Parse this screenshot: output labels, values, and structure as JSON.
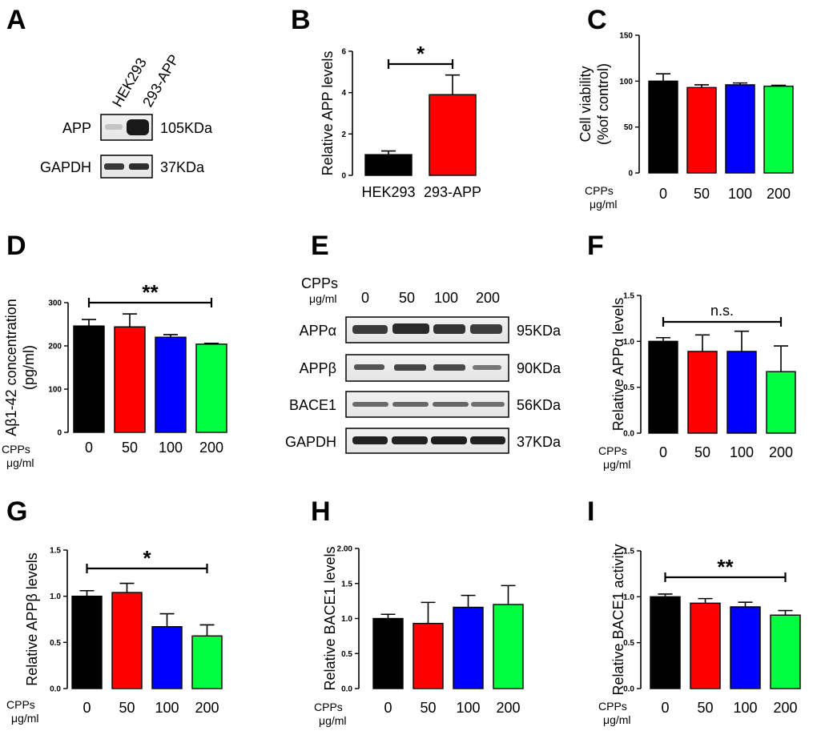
{
  "panel_letters": [
    "A",
    "B",
    "C",
    "D",
    "E",
    "F",
    "G",
    "H",
    "I"
  ],
  "treatment_label": {
    "line1": "CPPs",
    "line2": "μg/ml"
  },
  "colors": {
    "black": "#000000",
    "red": "#ff0000",
    "blue": "#0000ff",
    "green": "#00ff40"
  },
  "blot_A": {
    "lanes": [
      "HEK293",
      "293-APP"
    ],
    "rows": [
      {
        "name": "APP",
        "mw": "105KDa"
      },
      {
        "name": "GAPDH",
        "mw": "37KDa"
      }
    ]
  },
  "blot_E": {
    "header_line1": "CPPs",
    "header_line2": "μg/ml",
    "lanes": [
      "0",
      "50",
      "100",
      "200"
    ],
    "rows": [
      {
        "name": "APPα",
        "mw": "95KDa"
      },
      {
        "name": "APPβ",
        "mw": "90KDa"
      },
      {
        "name": "BACE1",
        "mw": "56KDa"
      },
      {
        "name": "GAPDH",
        "mw": "37KDa"
      }
    ]
  },
  "chart_data": [
    {
      "panel": "B",
      "type": "bar",
      "title": "",
      "categories": [
        "HEK293",
        "293-APP"
      ],
      "values": [
        1.0,
        3.9
      ],
      "errors": [
        0.18,
        0.95
      ],
      "colors": [
        "#000000",
        "#ff0000"
      ],
      "ylabel": "Relative APP levels",
      "ylim": [
        0,
        6
      ],
      "yticks": [
        0,
        2,
        4,
        6
      ],
      "ytick_labels": [
        "0",
        "2",
        "4",
        "6"
      ],
      "significance": {
        "label": "*",
        "from": 0,
        "to": 1
      }
    },
    {
      "panel": "C",
      "type": "bar",
      "title": "",
      "categories": [
        "0",
        "50",
        "100",
        "200"
      ],
      "values": [
        100,
        93,
        96,
        94.5
      ],
      "errors": [
        8,
        3,
        2,
        1
      ],
      "colors": [
        "#000000",
        "#ff0000",
        "#0000ff",
        "#00ff40"
      ],
      "ylabel": "Cell viability (%of control)",
      "ylabel_lines": [
        "Cell viability",
        "(%of control)"
      ],
      "ylim": [
        0,
        150
      ],
      "yticks": [
        0,
        50,
        100,
        150
      ],
      "ytick_labels": [
        "0",
        "50",
        "100",
        "150"
      ]
    },
    {
      "panel": "D",
      "type": "bar",
      "title": "",
      "categories": [
        "0",
        "50",
        "100",
        "200"
      ],
      "values": [
        246,
        244,
        220,
        204
      ],
      "errors": [
        15,
        30,
        6,
        2
      ],
      "colors": [
        "#000000",
        "#ff0000",
        "#0000ff",
        "#00ff40"
      ],
      "ylabel": "Aβ1-42 concentration (pg/ml)",
      "ylabel_lines": [
        "Aβ1-42 concentration",
        "(pg/ml)"
      ],
      "ylim": [
        0,
        300
      ],
      "yticks": [
        0,
        100,
        200,
        300
      ],
      "ytick_labels": [
        "0",
        "100",
        "200",
        "300"
      ],
      "significance": {
        "label": "**",
        "from": 0,
        "to": 3
      }
    },
    {
      "panel": "F",
      "type": "bar",
      "title": "",
      "categories": [
        "0",
        "50",
        "100",
        "200"
      ],
      "values": [
        1.0,
        0.89,
        0.89,
        0.67
      ],
      "errors": [
        0.04,
        0.18,
        0.22,
        0.28
      ],
      "colors": [
        "#000000",
        "#ff0000",
        "#0000ff",
        "#00ff40"
      ],
      "ylabel": "Relative APPα levels",
      "ylim": [
        0,
        1.5
      ],
      "yticks": [
        0,
        0.5,
        1.0,
        1.5
      ],
      "ytick_labels": [
        "0.0",
        "0.5",
        "1.0",
        "1.5"
      ],
      "significance": {
        "label": "n.s.",
        "from": 0,
        "to": 3
      }
    },
    {
      "panel": "G",
      "type": "bar",
      "title": "",
      "categories": [
        "0",
        "50",
        "100",
        "200"
      ],
      "values": [
        1.0,
        1.04,
        0.67,
        0.57
      ],
      "errors": [
        0.06,
        0.1,
        0.14,
        0.12
      ],
      "colors": [
        "#000000",
        "#ff0000",
        "#0000ff",
        "#00ff40"
      ],
      "ylabel": "Relative APPβ levels",
      "ylim": [
        0,
        1.5
      ],
      "yticks": [
        0,
        0.5,
        1.0,
        1.5
      ],
      "ytick_labels": [
        "0.0",
        "0.5",
        "1.0",
        "1.5"
      ],
      "significance": {
        "label": "*",
        "from": 0,
        "to": 3
      }
    },
    {
      "panel": "H",
      "type": "bar",
      "title": "",
      "categories": [
        "0",
        "50",
        "100",
        "200"
      ],
      "values": [
        1.0,
        0.93,
        1.16,
        1.2
      ],
      "errors": [
        0.06,
        0.3,
        0.17,
        0.27
      ],
      "colors": [
        "#000000",
        "#ff0000",
        "#0000ff",
        "#00ff40"
      ],
      "ylabel": "Relative BACE1 levels",
      "ylim": [
        0,
        2.0
      ],
      "yticks": [
        0,
        0.5,
        1.0,
        1.5,
        2.0
      ],
      "ytick_labels": [
        "0.0",
        "0.5",
        "1.0",
        "1.5",
        "2.00"
      ]
    },
    {
      "panel": "I",
      "type": "bar",
      "title": "",
      "categories": [
        "0",
        "50",
        "100",
        "200"
      ],
      "values": [
        1.0,
        0.93,
        0.89,
        0.8
      ],
      "errors": [
        0.03,
        0.05,
        0.05,
        0.05
      ],
      "colors": [
        "#000000",
        "#ff0000",
        "#0000ff",
        "#00ff40"
      ],
      "ylabel": "Relative BACE1 activity",
      "ylim": [
        0,
        1.5
      ],
      "yticks": [
        0,
        0.5,
        1.0,
        1.5
      ],
      "ytick_labels": [
        "0.0",
        "0.5",
        "1.0",
        "1.5"
      ],
      "significance": {
        "label": "**",
        "from": 0,
        "to": 3
      }
    }
  ]
}
